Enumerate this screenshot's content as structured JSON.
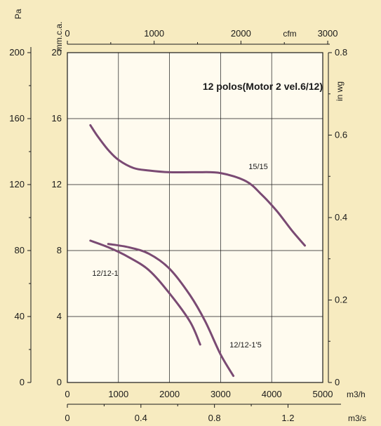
{
  "chart_data": {
    "type": "line",
    "title": "12 polos(Motor 2 vel.6/12)",
    "colors": {
      "background": "#f7ebc0",
      "plot": "#fffbef",
      "curve": "#7a4a73",
      "grid": "#1a1a1a"
    },
    "grid": true,
    "axes": {
      "x_bottom": {
        "unit": "m3/h",
        "range": [
          0,
          5000
        ],
        "ticks": [
          "0",
          "1000",
          "2000",
          "3000",
          "4000",
          "5000"
        ]
      },
      "x_bottom2": {
        "unit": "m3/s",
        "range": [
          0,
          1.389
        ],
        "ticks": [
          "0",
          "0.4",
          "0.8",
          "1.2"
        ]
      },
      "x_top": {
        "unit": "cfm",
        "range": [
          0,
          2943
        ],
        "ticks": [
          "0",
          "1000",
          "2000",
          "3000"
        ]
      },
      "y_left_outer": {
        "unit": "Pa",
        "range": [
          0,
          200
        ],
        "ticks": [
          "0",
          "40",
          "80",
          "120",
          "160",
          "200"
        ]
      },
      "y_left_inner": {
        "unit": "mm.c.a.",
        "range": [
          0,
          20
        ],
        "ticks": [
          "0",
          "4",
          "8",
          "12",
          "16",
          "20"
        ]
      },
      "y_right": {
        "unit": "in wg",
        "range": [
          0,
          0.8
        ],
        "ticks": [
          "0",
          "0.2",
          "0.4",
          "0.6",
          "0.8"
        ]
      }
    },
    "series": [
      {
        "name": "15/15",
        "points": [
          [
            450,
            15.6
          ],
          [
            600,
            14.9
          ],
          [
            800,
            14.1
          ],
          [
            1000,
            13.5
          ],
          [
            1300,
            13.0
          ],
          [
            1600,
            12.85
          ],
          [
            2000,
            12.75
          ],
          [
            2500,
            12.75
          ],
          [
            3000,
            12.7
          ],
          [
            3500,
            12.2
          ],
          [
            3800,
            11.4
          ],
          [
            4100,
            10.4
          ],
          [
            4400,
            9.2
          ],
          [
            4650,
            8.3
          ]
        ]
      },
      {
        "name": "12/12-1'5",
        "points": [
          [
            800,
            8.4
          ],
          [
            1200,
            8.2
          ],
          [
            1600,
            7.8
          ],
          [
            2000,
            6.9
          ],
          [
            2400,
            5.3
          ],
          [
            2700,
            3.7
          ],
          [
            3000,
            1.7
          ],
          [
            3250,
            0.4
          ]
        ]
      },
      {
        "name": "12/12-1",
        "points": [
          [
            450,
            8.6
          ],
          [
            800,
            8.2
          ],
          [
            1200,
            7.6
          ],
          [
            1600,
            6.8
          ],
          [
            2000,
            5.4
          ],
          [
            2400,
            3.7
          ],
          [
            2600,
            2.3
          ]
        ]
      }
    ]
  }
}
